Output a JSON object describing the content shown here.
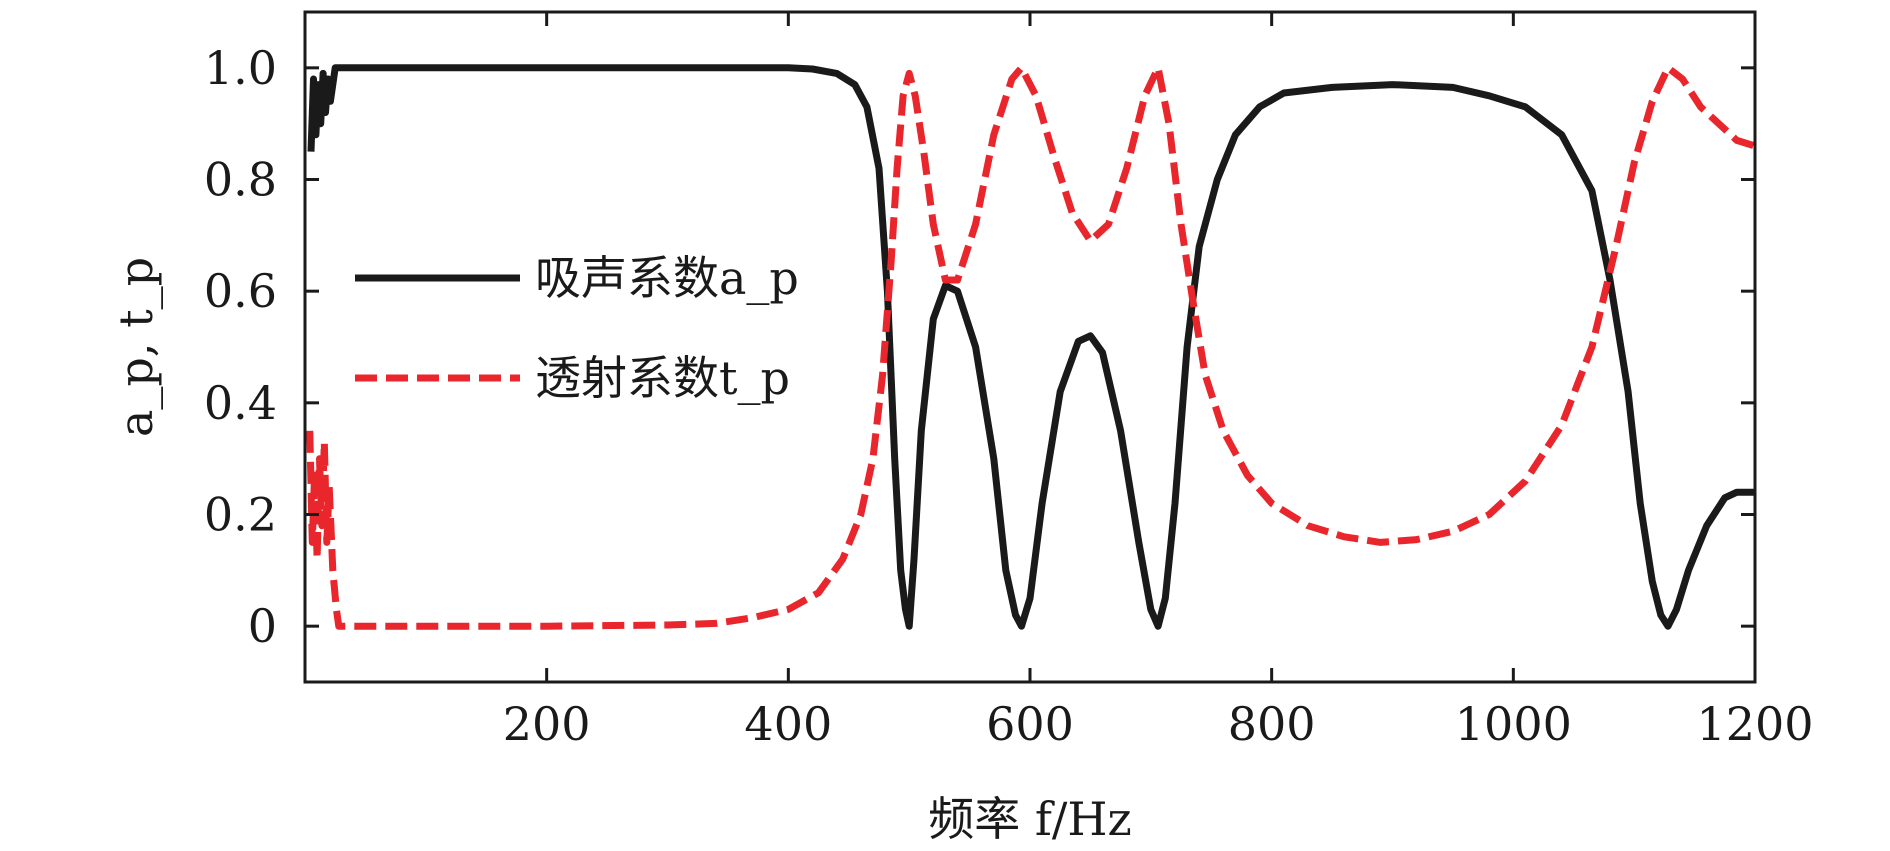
{
  "chart_data": {
    "type": "line",
    "xlabel": "频率 f/Hz",
    "ylabel": "a_p, t_p",
    "xlim": [
      0,
      1200
    ],
    "ylim": [
      -0.1,
      1.1
    ],
    "xticks": [
      200,
      400,
      600,
      800,
      1000,
      1200
    ],
    "xtick_labels": [
      "200",
      "400",
      "600",
      "800",
      "1000",
      "1200"
    ],
    "yticks": [
      0,
      0.2,
      0.4,
      0.6,
      0.8,
      1.0
    ],
    "ytick_labels": [
      "0",
      "0.2",
      "0.4",
      "0.6",
      "0.8",
      "1.0"
    ],
    "grid": false,
    "legend_position": "center-left",
    "series": [
      {
        "name": "吸声系数a_p",
        "color": "#1a1a1a",
        "style": "solid",
        "points": [
          [
            5,
            0.85
          ],
          [
            7,
            0.98
          ],
          [
            9,
            0.88
          ],
          [
            11,
            0.97
          ],
          [
            13,
            0.9
          ],
          [
            15,
            0.99
          ],
          [
            17,
            0.92
          ],
          [
            19,
            0.98
          ],
          [
            21,
            0.94
          ],
          [
            25,
            1.0
          ],
          [
            100,
            1.0
          ],
          [
            300,
            1.0
          ],
          [
            400,
            1.0
          ],
          [
            420,
            0.998
          ],
          [
            440,
            0.99
          ],
          [
            455,
            0.97
          ],
          [
            465,
            0.93
          ],
          [
            475,
            0.82
          ],
          [
            482,
            0.6
          ],
          [
            488,
            0.3
          ],
          [
            493,
            0.1
          ],
          [
            497,
            0.03
          ],
          [
            500,
            0.0
          ],
          [
            504,
            0.12
          ],
          [
            510,
            0.35
          ],
          [
            520,
            0.55
          ],
          [
            530,
            0.61
          ],
          [
            540,
            0.6
          ],
          [
            555,
            0.5
          ],
          [
            570,
            0.3
          ],
          [
            580,
            0.1
          ],
          [
            588,
            0.02
          ],
          [
            593,
            0.0
          ],
          [
            600,
            0.05
          ],
          [
            610,
            0.22
          ],
          [
            625,
            0.42
          ],
          [
            640,
            0.51
          ],
          [
            650,
            0.52
          ],
          [
            660,
            0.49
          ],
          [
            675,
            0.35
          ],
          [
            690,
            0.15
          ],
          [
            700,
            0.03
          ],
          [
            706,
            0.0
          ],
          [
            712,
            0.05
          ],
          [
            720,
            0.22
          ],
          [
            730,
            0.5
          ],
          [
            740,
            0.68
          ],
          [
            755,
            0.8
          ],
          [
            770,
            0.88
          ],
          [
            790,
            0.93
          ],
          [
            810,
            0.955
          ],
          [
            850,
            0.965
          ],
          [
            900,
            0.97
          ],
          [
            950,
            0.965
          ],
          [
            980,
            0.95
          ],
          [
            1010,
            0.93
          ],
          [
            1040,
            0.88
          ],
          [
            1065,
            0.78
          ],
          [
            1080,
            0.62
          ],
          [
            1095,
            0.42
          ],
          [
            1105,
            0.22
          ],
          [
            1115,
            0.08
          ],
          [
            1122,
            0.02
          ],
          [
            1128,
            0.0
          ],
          [
            1135,
            0.03
          ],
          [
            1145,
            0.1
          ],
          [
            1160,
            0.18
          ],
          [
            1175,
            0.23
          ],
          [
            1185,
            0.24
          ],
          [
            1200,
            0.24
          ]
        ]
      },
      {
        "name": "透射系数t_p",
        "color": "#e8262b",
        "style": "dashed",
        "points": [
          [
            4,
            0.35
          ],
          [
            6,
            0.15
          ],
          [
            8,
            0.28
          ],
          [
            10,
            0.12
          ],
          [
            12,
            0.3
          ],
          [
            14,
            0.18
          ],
          [
            16,
            0.33
          ],
          [
            18,
            0.15
          ],
          [
            20,
            0.25
          ],
          [
            23,
            0.1
          ],
          [
            26,
            0.03
          ],
          [
            28,
            0.0
          ],
          [
            100,
            0.0
          ],
          [
            200,
            0.0
          ],
          [
            300,
            0.002
          ],
          [
            340,
            0.005
          ],
          [
            370,
            0.015
          ],
          [
            400,
            0.03
          ],
          [
            425,
            0.06
          ],
          [
            445,
            0.12
          ],
          [
            460,
            0.2
          ],
          [
            470,
            0.3
          ],
          [
            478,
            0.45
          ],
          [
            485,
            0.65
          ],
          [
            490,
            0.82
          ],
          [
            495,
            0.95
          ],
          [
            500,
            0.99
          ],
          [
            505,
            0.95
          ],
          [
            512,
            0.85
          ],
          [
            520,
            0.72
          ],
          [
            530,
            0.62
          ],
          [
            540,
            0.62
          ],
          [
            555,
            0.72
          ],
          [
            570,
            0.88
          ],
          [
            585,
            0.98
          ],
          [
            593,
            1.0
          ],
          [
            605,
            0.95
          ],
          [
            620,
            0.84
          ],
          [
            635,
            0.74
          ],
          [
            650,
            0.69
          ],
          [
            665,
            0.72
          ],
          [
            680,
            0.82
          ],
          [
            695,
            0.95
          ],
          [
            706,
            1.0
          ],
          [
            715,
            0.9
          ],
          [
            725,
            0.72
          ],
          [
            735,
            0.58
          ],
          [
            745,
            0.45
          ],
          [
            760,
            0.35
          ],
          [
            780,
            0.27
          ],
          [
            800,
            0.22
          ],
          [
            830,
            0.18
          ],
          [
            860,
            0.16
          ],
          [
            890,
            0.15
          ],
          [
            920,
            0.155
          ],
          [
            950,
            0.17
          ],
          [
            980,
            0.2
          ],
          [
            1010,
            0.26
          ],
          [
            1040,
            0.36
          ],
          [
            1065,
            0.5
          ],
          [
            1085,
            0.68
          ],
          [
            1100,
            0.83
          ],
          [
            1115,
            0.94
          ],
          [
            1128,
            1.0
          ],
          [
            1140,
            0.98
          ],
          [
            1155,
            0.93
          ],
          [
            1170,
            0.9
          ],
          [
            1185,
            0.87
          ],
          [
            1200,
            0.86
          ]
        ]
      }
    ]
  }
}
